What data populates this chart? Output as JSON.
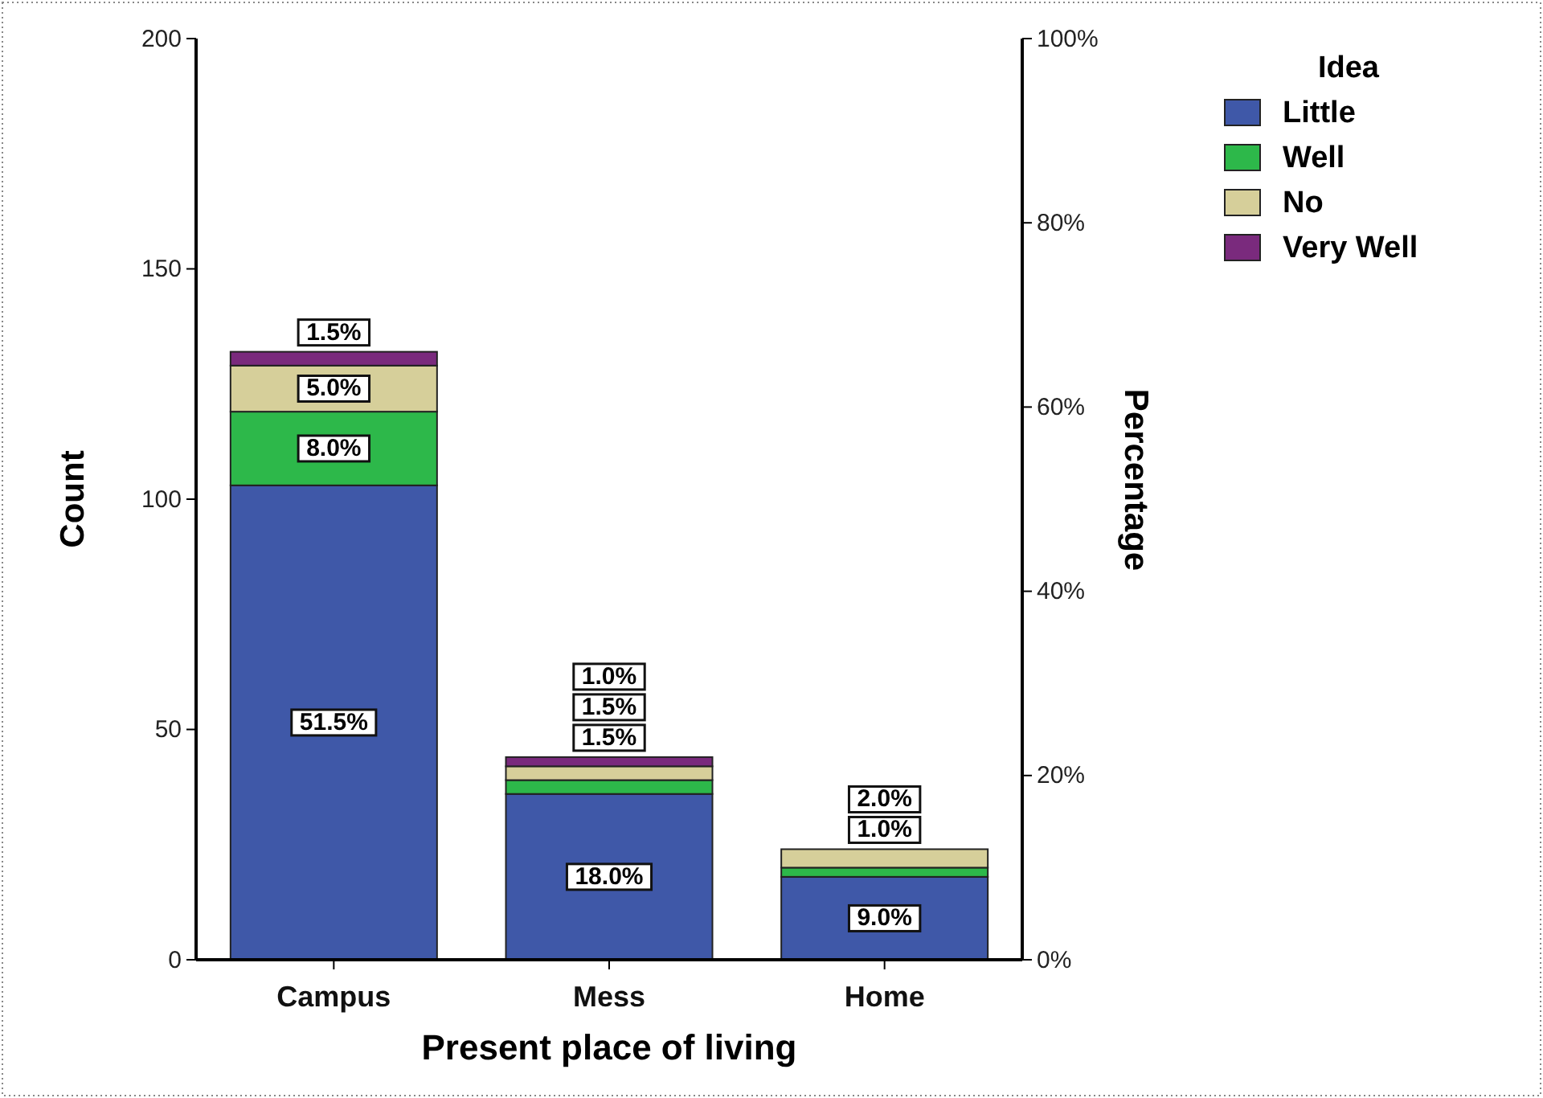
{
  "chart_data": {
    "type": "bar",
    "stacked": true,
    "xlabel": "Present place of living",
    "ylabel": "Count",
    "y2label": "Percentage",
    "legend_title": "Idea",
    "legend": "top right",
    "categories": [
      "Campus",
      "Mess",
      "Home"
    ],
    "series": [
      {
        "name": "Little",
        "color": "#3f58a8",
        "axis": "y2",
        "values": [
          51.5,
          18.0,
          9.0
        ],
        "value_labels": [
          "51.5%",
          "18.0%",
          "9.0%"
        ]
      },
      {
        "name": "Well",
        "color": "#2db84a",
        "axis": "y2",
        "values": [
          8.0,
          1.5,
          1.0
        ],
        "value_labels": [
          "8.0%",
          "1.5%",
          "1.0%"
        ]
      },
      {
        "name": "No",
        "color": "#d6cf9a",
        "axis": "y2",
        "values": [
          5.0,
          1.5,
          2.0
        ],
        "value_labels": [
          "5.0%",
          "1.5%",
          "2.0%"
        ]
      },
      {
        "name": "Very Well",
        "color": "#7a2a7d",
        "axis": "y2",
        "values": [
          1.5,
          1.0,
          null
        ],
        "value_labels": [
          "1.5%",
          "1.0%",
          null
        ]
      }
    ],
    "ylim": [
      0,
      200
    ],
    "yticks": [
      0,
      50,
      100,
      150,
      200
    ],
    "y2lim": [
      0,
      100
    ],
    "y2ticks": [
      {
        "value": 0,
        "label": "0%"
      },
      {
        "value": 20,
        "label": "20%"
      },
      {
        "value": 40,
        "label": "40%"
      },
      {
        "value": 60,
        "label": "60%"
      },
      {
        "value": 80,
        "label": "80%"
      },
      {
        "value": 100,
        "label": "100%"
      }
    ],
    "grid": false
  }
}
